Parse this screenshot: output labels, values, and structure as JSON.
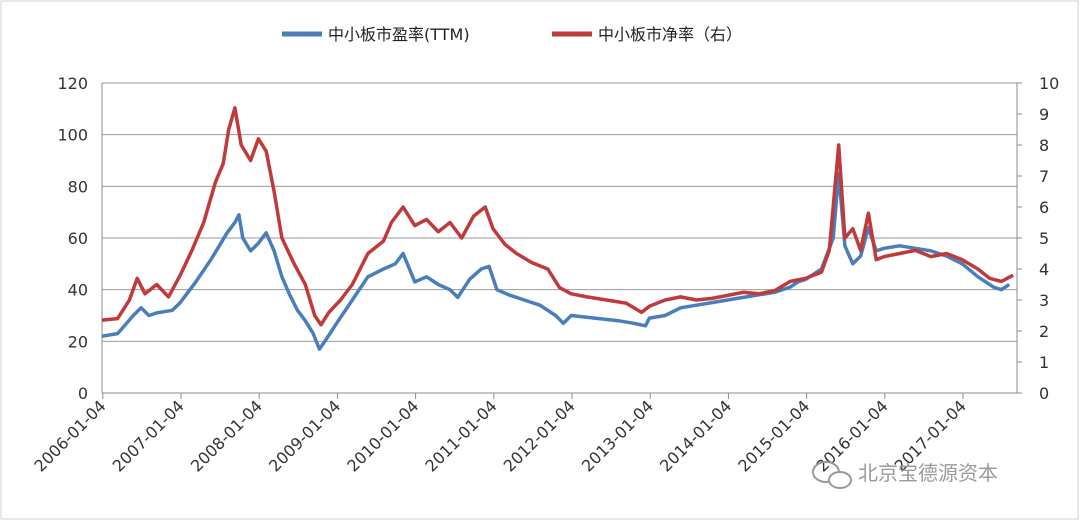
{
  "chart_data": {
    "type": "line",
    "legend_position": "top",
    "grid": true,
    "x_tick_labels": [
      "2006-01-04",
      "2007-01-04",
      "2008-01-04",
      "2009-01-04",
      "2010-01-04",
      "2011-01-04",
      "2012-01-04",
      "2013-01-04",
      "2014-01-04",
      "2015-01-04",
      "2016-01-04",
      "2017-01-04"
    ],
    "y_left": {
      "min": 0,
      "max": 120,
      "ticks": [
        0,
        20,
        40,
        60,
        80,
        100,
        120
      ]
    },
    "y_right": {
      "min": 0,
      "max": 10,
      "ticks": [
        0,
        1,
        2,
        3,
        4,
        5,
        6,
        7,
        8,
        9,
        10
      ]
    },
    "series": [
      {
        "name": "中小板市盈率(TTM)",
        "axis": "left",
        "color": "#4a7ebb",
        "points": [
          [
            2006.0,
            22
          ],
          [
            2006.2,
            23
          ],
          [
            2006.4,
            30
          ],
          [
            2006.5,
            33
          ],
          [
            2006.6,
            30
          ],
          [
            2006.7,
            31
          ],
          [
            2006.9,
            32
          ],
          [
            2007.0,
            35
          ],
          [
            2007.2,
            43
          ],
          [
            2007.4,
            52
          ],
          [
            2007.5,
            57
          ],
          [
            2007.6,
            62
          ],
          [
            2007.7,
            66
          ],
          [
            2007.75,
            69
          ],
          [
            2007.8,
            60
          ],
          [
            2007.9,
            55
          ],
          [
            2008.0,
            58
          ],
          [
            2008.1,
            62
          ],
          [
            2008.2,
            55
          ],
          [
            2008.3,
            45
          ],
          [
            2008.4,
            38
          ],
          [
            2008.5,
            32
          ],
          [
            2008.6,
            28
          ],
          [
            2008.7,
            23
          ],
          [
            2008.78,
            17
          ],
          [
            2008.85,
            20
          ],
          [
            2009.0,
            27
          ],
          [
            2009.2,
            36
          ],
          [
            2009.4,
            45
          ],
          [
            2009.6,
            48
          ],
          [
            2009.75,
            50
          ],
          [
            2009.85,
            54
          ],
          [
            2010.0,
            43
          ],
          [
            2010.15,
            45
          ],
          [
            2010.3,
            42
          ],
          [
            2010.45,
            40
          ],
          [
            2010.55,
            37
          ],
          [
            2010.7,
            44
          ],
          [
            2010.85,
            48
          ],
          [
            2010.95,
            49
          ],
          [
            2011.05,
            40
          ],
          [
            2011.2,
            38
          ],
          [
            2011.4,
            36
          ],
          [
            2011.6,
            34
          ],
          [
            2011.8,
            30
          ],
          [
            2011.9,
            27
          ],
          [
            2012.0,
            30
          ],
          [
            2012.3,
            29
          ],
          [
            2012.6,
            28
          ],
          [
            2012.8,
            27
          ],
          [
            2012.95,
            26
          ],
          [
            2013.0,
            29
          ],
          [
            2013.2,
            30
          ],
          [
            2013.4,
            33
          ],
          [
            2013.6,
            34
          ],
          [
            2013.8,
            35
          ],
          [
            2014.0,
            36
          ],
          [
            2014.2,
            37
          ],
          [
            2014.4,
            38
          ],
          [
            2014.6,
            39
          ],
          [
            2014.8,
            41
          ],
          [
            2014.9,
            43
          ],
          [
            2015.0,
            44
          ],
          [
            2015.2,
            48
          ],
          [
            2015.35,
            60
          ],
          [
            2015.42,
            85
          ],
          [
            2015.5,
            57
          ],
          [
            2015.6,
            50
          ],
          [
            2015.7,
            53
          ],
          [
            2015.8,
            64
          ],
          [
            2015.9,
            55
          ],
          [
            2016.0,
            56
          ],
          [
            2016.2,
            57
          ],
          [
            2016.4,
            56
          ],
          [
            2016.6,
            55
          ],
          [
            2016.8,
            53
          ],
          [
            2017.0,
            50
          ],
          [
            2017.2,
            45
          ],
          [
            2017.4,
            41
          ],
          [
            2017.5,
            40
          ],
          [
            2017.6,
            42
          ]
        ]
      },
      {
        "name": "中小板市净率（右）",
        "axis": "right",
        "color": "#c0393b",
        "points": [
          [
            2006.0,
            2.35
          ],
          [
            2006.2,
            2.4
          ],
          [
            2006.35,
            3.0
          ],
          [
            2006.45,
            3.7
          ],
          [
            2006.55,
            3.2
          ],
          [
            2006.7,
            3.5
          ],
          [
            2006.85,
            3.1
          ],
          [
            2007.0,
            3.8
          ],
          [
            2007.15,
            4.6
          ],
          [
            2007.3,
            5.5
          ],
          [
            2007.45,
            6.8
          ],
          [
            2007.55,
            7.4
          ],
          [
            2007.62,
            8.5
          ],
          [
            2007.7,
            9.2
          ],
          [
            2007.78,
            8.0
          ],
          [
            2007.9,
            7.5
          ],
          [
            2008.0,
            8.2
          ],
          [
            2008.1,
            7.8
          ],
          [
            2008.2,
            6.5
          ],
          [
            2008.3,
            5.0
          ],
          [
            2008.45,
            4.2
          ],
          [
            2008.6,
            3.5
          ],
          [
            2008.72,
            2.5
          ],
          [
            2008.8,
            2.2
          ],
          [
            2008.9,
            2.6
          ],
          [
            2009.05,
            3.0
          ],
          [
            2009.2,
            3.5
          ],
          [
            2009.4,
            4.5
          ],
          [
            2009.6,
            4.9
          ],
          [
            2009.7,
            5.5
          ],
          [
            2009.85,
            6.0
          ],
          [
            2010.0,
            5.4
          ],
          [
            2010.15,
            5.6
          ],
          [
            2010.3,
            5.2
          ],
          [
            2010.45,
            5.5
          ],
          [
            2010.6,
            5.0
          ],
          [
            2010.75,
            5.7
          ],
          [
            2010.9,
            6.0
          ],
          [
            2011.0,
            5.3
          ],
          [
            2011.15,
            4.8
          ],
          [
            2011.3,
            4.5
          ],
          [
            2011.5,
            4.2
          ],
          [
            2011.7,
            4.0
          ],
          [
            2011.85,
            3.4
          ],
          [
            2012.0,
            3.2
          ],
          [
            2012.2,
            3.1
          ],
          [
            2012.45,
            3.0
          ],
          [
            2012.7,
            2.9
          ],
          [
            2012.9,
            2.6
          ],
          [
            2013.0,
            2.8
          ],
          [
            2013.2,
            3.0
          ],
          [
            2013.4,
            3.1
          ],
          [
            2013.6,
            3.0
          ],
          [
            2013.8,
            3.05
          ],
          [
            2014.0,
            3.15
          ],
          [
            2014.2,
            3.25
          ],
          [
            2014.4,
            3.2
          ],
          [
            2014.6,
            3.3
          ],
          [
            2014.8,
            3.6
          ],
          [
            2015.0,
            3.7
          ],
          [
            2015.2,
            3.9
          ],
          [
            2015.3,
            4.6
          ],
          [
            2015.42,
            8.0
          ],
          [
            2015.5,
            5.0
          ],
          [
            2015.6,
            5.3
          ],
          [
            2015.7,
            4.6
          ],
          [
            2015.8,
            5.8
          ],
          [
            2015.9,
            4.3
          ],
          [
            2016.0,
            4.4
          ],
          [
            2016.2,
            4.5
          ],
          [
            2016.4,
            4.6
          ],
          [
            2016.6,
            4.4
          ],
          [
            2016.8,
            4.5
          ],
          [
            2017.0,
            4.3
          ],
          [
            2017.2,
            4.0
          ],
          [
            2017.35,
            3.7
          ],
          [
            2017.5,
            3.6
          ],
          [
            2017.65,
            3.8
          ]
        ]
      }
    ]
  },
  "watermark": {
    "text": "北京宝德源资本",
    "icon": "chat-bubbles-icon"
  }
}
